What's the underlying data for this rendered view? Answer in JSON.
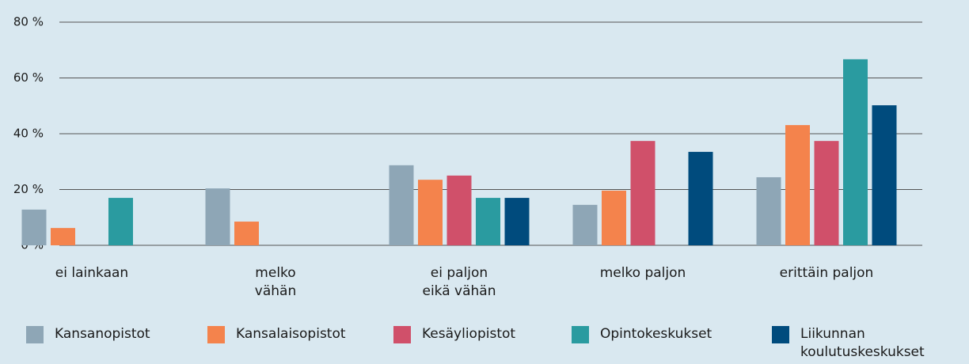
{
  "chart_data": {
    "type": "bar",
    "categories": [
      "ei lainkaan",
      "melko\nvähän",
      "ei paljon\neikä vähän",
      "melko paljon",
      "erittäin paljon"
    ],
    "series": [
      {
        "name": "Kansanopistot",
        "color": "#8ea6b6",
        "values": [
          12.8,
          20.4,
          28.7,
          14.5,
          24.4
        ]
      },
      {
        "name": "Kansalaisopistot",
        "color": "#f4834c",
        "values": [
          6.2,
          8.5,
          23.5,
          19.6,
          43.1
        ]
      },
      {
        "name": "Kesäyliopistot",
        "color": "#d0506a",
        "values": [
          null,
          null,
          25.0,
          37.4,
          37.4
        ]
      },
      {
        "name": "Opintokeskukset",
        "color": "#2a9ba0",
        "values": [
          17.0,
          null,
          17.0,
          null,
          66.7
        ]
      },
      {
        "name": "Liikunnan\nkoulutuskeskukset",
        "color": "#004b7d",
        "values": [
          null,
          null,
          17.0,
          33.5,
          50.2
        ]
      }
    ],
    "ylim": [
      0,
      80
    ],
    "yticks": [
      {
        "value": 0,
        "label": "0 %"
      },
      {
        "value": 20,
        "label": "20 %"
      },
      {
        "value": 40,
        "label": "40 %"
      },
      {
        "value": 60,
        "label": "60 %"
      },
      {
        "value": 80,
        "label": "80 %"
      }
    ],
    "grid": true
  }
}
